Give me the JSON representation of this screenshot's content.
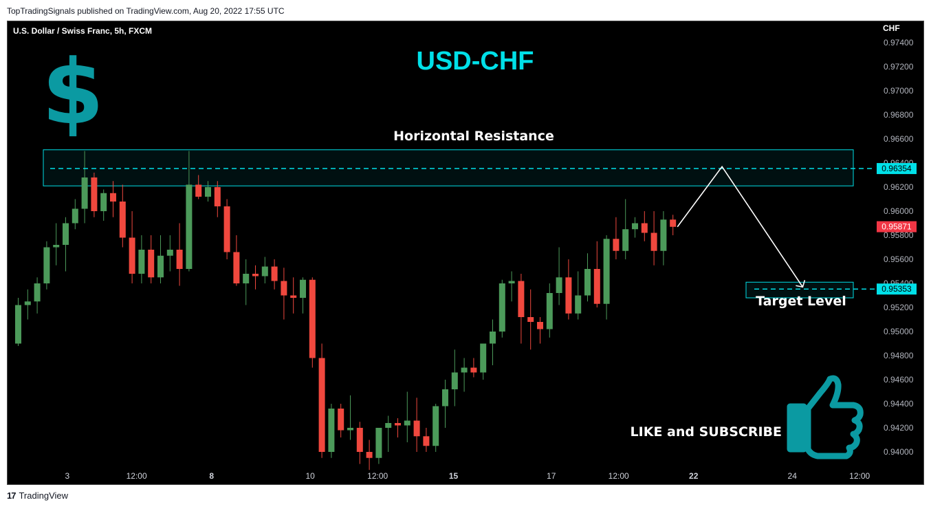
{
  "header": {
    "published": "TopTradingSignals published on TradingView.com, Aug 20, 2022 17:55 UTC"
  },
  "footer": {
    "brand": "TradingView",
    "logo_glyph": "17"
  },
  "chart_data": {
    "type": "candlestick",
    "symbol": "U.S. Dollar / Swiss Franc, 5h, FXCM",
    "title": "USD-CHF",
    "currency_symbol": "$",
    "price_axis_unit": "CHF",
    "ylim": [
      0.9386,
      0.9745
    ],
    "y_ticks": [
      "0.97400",
      "0.97200",
      "0.97000",
      "0.96800",
      "0.96600",
      "0.96400",
      "0.96200",
      "0.96000",
      "0.95800",
      "0.95600",
      "0.95400",
      "0.95200",
      "0.95000",
      "0.94800",
      "0.94600",
      "0.94400",
      "0.94200",
      "0.94000"
    ],
    "x_ticks": [
      {
        "label": "3",
        "slot": 5.5,
        "bold": false
      },
      {
        "label": "12:00",
        "slot": 12.8,
        "bold": false
      },
      {
        "label": "8",
        "slot": 20.7,
        "bold": true
      },
      {
        "label": "10",
        "slot": 31.1,
        "bold": false
      },
      {
        "label": "12:00",
        "slot": 38.2,
        "bold": false
      },
      {
        "label": "15",
        "slot": 46.2,
        "bold": true
      },
      {
        "label": "17",
        "slot": 56.5,
        "bold": false
      },
      {
        "label": "12:00",
        "slot": 63.6,
        "bold": false
      },
      {
        "label": "22",
        "slot": 71.5,
        "bold": true
      },
      {
        "label": "24",
        "slot": 81.9,
        "bold": false
      },
      {
        "label": "12:00",
        "slot": 89.0,
        "bold": false
      }
    ],
    "candles": [
      [
        0.949,
        0.9528,
        0.9488,
        0.9522
      ],
      [
        0.9522,
        0.9535,
        0.951,
        0.9525
      ],
      [
        0.9525,
        0.9545,
        0.9515,
        0.954
      ],
      [
        0.954,
        0.9575,
        0.9535,
        0.957
      ],
      [
        0.957,
        0.959,
        0.9555,
        0.9572
      ],
      [
        0.9572,
        0.9595,
        0.955,
        0.959
      ],
      [
        0.959,
        0.961,
        0.9585,
        0.9602
      ],
      [
        0.9602,
        0.965,
        0.959,
        0.9628
      ],
      [
        0.9628,
        0.9632,
        0.9595,
        0.96
      ],
      [
        0.96,
        0.9618,
        0.9592,
        0.9615
      ],
      [
        0.9615,
        0.9625,
        0.9595,
        0.9608
      ],
      [
        0.9608,
        0.9622,
        0.957,
        0.9578
      ],
      [
        0.9578,
        0.96,
        0.954,
        0.9548
      ],
      [
        0.9548,
        0.958,
        0.954,
        0.9568
      ],
      [
        0.9568,
        0.958,
        0.954,
        0.9545
      ],
      [
        0.9545,
        0.958,
        0.954,
        0.9563
      ],
      [
        0.9563,
        0.958,
        0.955,
        0.9568
      ],
      [
        0.9568,
        0.959,
        0.9538,
        0.9552
      ],
      [
        0.9552,
        0.965,
        0.955,
        0.9622
      ],
      [
        0.9622,
        0.963,
        0.961,
        0.9612
      ],
      [
        0.9612,
        0.9625,
        0.9608,
        0.962
      ],
      [
        0.962,
        0.9625,
        0.9595,
        0.9604
      ],
      [
        0.9604,
        0.961,
        0.956,
        0.9566
      ],
      [
        0.9566,
        0.958,
        0.9538,
        0.954
      ],
      [
        0.954,
        0.956,
        0.9522,
        0.9548
      ],
      [
        0.9548,
        0.9555,
        0.9535,
        0.9546
      ],
      [
        0.9546,
        0.9562,
        0.954,
        0.9554
      ],
      [
        0.9554,
        0.956,
        0.9535,
        0.9542
      ],
      [
        0.9542,
        0.9553,
        0.951,
        0.953
      ],
      [
        0.953,
        0.9545,
        0.9515,
        0.9528
      ],
      [
        0.9528,
        0.9545,
        0.9515,
        0.9543
      ],
      [
        0.9543,
        0.9545,
        0.947,
        0.9478
      ],
      [
        0.9478,
        0.949,
        0.9395,
        0.94
      ],
      [
        0.94,
        0.944,
        0.9395,
        0.9436
      ],
      [
        0.9436,
        0.944,
        0.9412,
        0.9418
      ],
      [
        0.9418,
        0.9447,
        0.941,
        0.942
      ],
      [
        0.942,
        0.9425,
        0.939,
        0.94
      ],
      [
        0.94,
        0.941,
        0.9385,
        0.9395
      ],
      [
        0.9395,
        0.942,
        0.939,
        0.942
      ],
      [
        0.942,
        0.943,
        0.94,
        0.9424
      ],
      [
        0.9424,
        0.9428,
        0.9412,
        0.9422
      ],
      [
        0.9422,
        0.945,
        0.9408,
        0.9426
      ],
      [
        0.9426,
        0.9445,
        0.94,
        0.9413
      ],
      [
        0.9413,
        0.942,
        0.94,
        0.9405
      ],
      [
        0.9405,
        0.944,
        0.94,
        0.9438
      ],
      [
        0.9438,
        0.946,
        0.942,
        0.9452
      ],
      [
        0.9452,
        0.9485,
        0.9438,
        0.9466
      ],
      [
        0.9466,
        0.9478,
        0.945,
        0.947
      ],
      [
        0.947,
        0.9478,
        0.9462,
        0.9466
      ],
      [
        0.9466,
        0.949,
        0.946,
        0.949
      ],
      [
        0.949,
        0.951,
        0.9472,
        0.95
      ],
      [
        0.95,
        0.9543,
        0.9495,
        0.954
      ],
      [
        0.954,
        0.955,
        0.9525,
        0.9542
      ],
      [
        0.9542,
        0.9548,
        0.949,
        0.9512
      ],
      [
        0.9512,
        0.9535,
        0.9485,
        0.9508
      ],
      [
        0.9508,
        0.9512,
        0.949,
        0.9502
      ],
      [
        0.9502,
        0.954,
        0.9495,
        0.9532
      ],
      [
        0.9532,
        0.957,
        0.9522,
        0.9545
      ],
      [
        0.9545,
        0.956,
        0.951,
        0.9515
      ],
      [
        0.9515,
        0.955,
        0.951,
        0.953
      ],
      [
        0.953,
        0.9565,
        0.9525,
        0.9552
      ],
      [
        0.9552,
        0.9575,
        0.952,
        0.9523
      ],
      [
        0.9523,
        0.958,
        0.951,
        0.9577
      ],
      [
        0.9577,
        0.9595,
        0.956,
        0.9567
      ],
      [
        0.9567,
        0.961,
        0.956,
        0.9585
      ],
      [
        0.9585,
        0.9595,
        0.9578,
        0.959
      ],
      [
        0.959,
        0.96,
        0.9575,
        0.9582
      ],
      [
        0.9582,
        0.96,
        0.9555,
        0.9567
      ],
      [
        0.9567,
        0.96,
        0.9555,
        0.9593
      ],
      [
        0.9593,
        0.9597,
        0.958,
        0.9587
      ]
    ],
    "colors": {
      "up": "#4c9a5a",
      "down": "#f0483e",
      "accent": "#00e0e8",
      "logo": "#0b9aa2"
    },
    "annotations": {
      "resistance_label": "Horizontal Resistance",
      "resistance_zone": [
        0.9621,
        0.9651
      ],
      "resistance_line": 0.96354,
      "resistance_price": "0.96354",
      "current_price": "0.95871",
      "target_label": "Target Level",
      "target_zone": [
        0.9528,
        0.9541
      ],
      "target_line": 0.95353,
      "target_price": "0.95353",
      "projection": {
        "peak_slot": 74.5,
        "peak": 0.9637,
        "end_slot": 83,
        "end": 0.9537
      },
      "cta": "LIKE and SUBSCRIBE",
      "cta_icon": "thumbs-up-icon"
    }
  }
}
